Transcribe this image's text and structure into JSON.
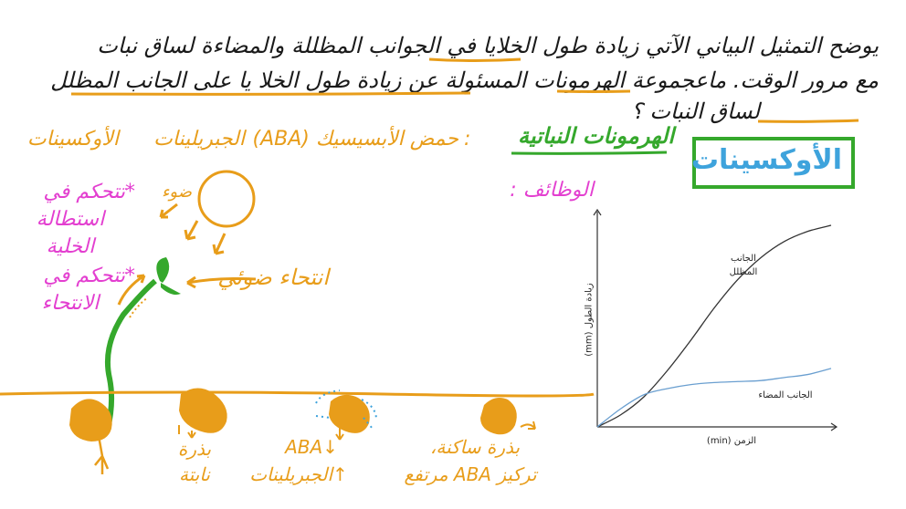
{
  "question": {
    "line1": "يوضح التمثيل البياني الآتي زيادة طول الخلايا في الجوانب المظللة والمضاءة لساق نبات",
    "line2": "مع مرور الوقت. ماعجموعة الهرمونات المسئولة عن زيادة طول الخلا يا على الجانب المظلل",
    "line3": "لساق النبات ؟"
  },
  "answer": {
    "label": "الأوكسينات"
  },
  "hormones": {
    "title": "الهرمونات النباتية",
    "colon": ":",
    "item1": "حمض الأبسيسيك (ABA)",
    "item2": "الجبريلينات",
    "item3": "الأوكسينات"
  },
  "functions": {
    "label": "الوظائف :"
  },
  "light": {
    "label": "ضوء"
  },
  "phototropism": {
    "label": "انتحاء ضوئي"
  },
  "auxin_functions": {
    "bullet": "*",
    "f1_line1": "تتحكم في",
    "f1_line2": "استطالة",
    "f1_line3": "الخلية",
    "f2_line1": "تتحكم في",
    "f2_line2": "الانتحاء"
  },
  "seeds": {
    "germinating_line1": "بذرة",
    "germinating_line2": "نابتة",
    "aba_down": "ABA↓",
    "gib_up": "↑الجبريلينات",
    "dormant_line1": "بذرة ساكنة،",
    "dormant_line2": "تركيز ABA مرتفع"
  },
  "graph": {
    "ylabel": "زيادة الطول (mm)",
    "xlabel": "الزمن (min)",
    "series_shaded_line1": "الجانب",
    "series_shaded_line2": "المظلل",
    "series_lit": "الجانب المضاء"
  },
  "chart_data": {
    "type": "line",
    "xlabel": "الزمن (min)",
    "ylabel": "زيادة الطول (mm)",
    "x": [
      0,
      1,
      2,
      3,
      4,
      5,
      6,
      7,
      8,
      9,
      10
    ],
    "series": [
      {
        "name": "الجانب المظلل",
        "values": [
          0,
          0.6,
          1.5,
          2.8,
          4.3,
          5.9,
          7.3,
          8.4,
          9.2,
          9.7,
          10
        ],
        "color": "#333333"
      },
      {
        "name": "الجانب المضاء",
        "values": [
          0,
          0.9,
          1.6,
          1.9,
          2.1,
          2.2,
          2.25,
          2.3,
          2.45,
          2.6,
          2.9
        ],
        "color": "#6a9fd0"
      }
    ],
    "xlim": [
      0,
      10
    ],
    "ylim": [
      0,
      10.5
    ],
    "grid": false,
    "legend": "none"
  },
  "colors": {
    "orange": "#e89d1a",
    "green": "#35a82c",
    "pink": "#e33fd0",
    "blue": "#3ea3dc",
    "dark": "#1a1a1a"
  }
}
